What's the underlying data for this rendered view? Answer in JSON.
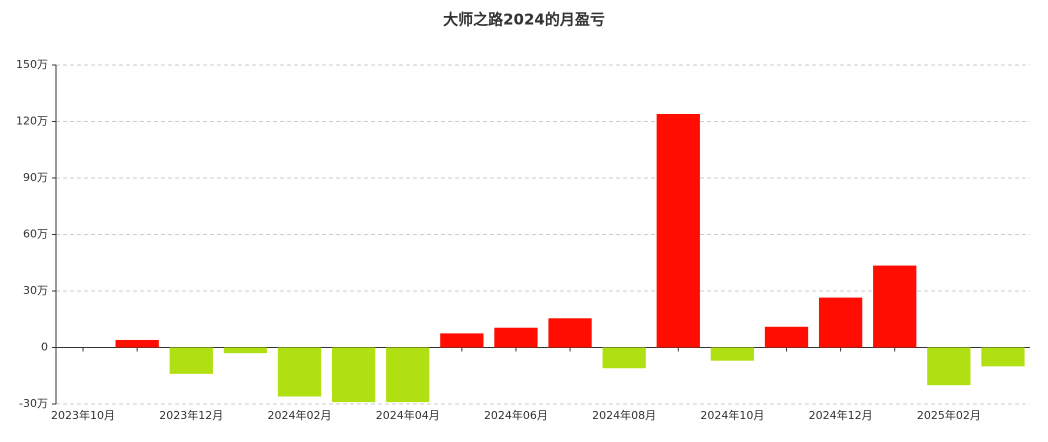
{
  "chart_data": {
    "type": "bar",
    "title": "大师之路2024的月盈亏",
    "categories": [
      "2023年10月",
      null,
      "2023年12月",
      null,
      "2024年02月",
      null,
      "2024年04月",
      null,
      "2024年06月",
      null,
      "2024年08月",
      null,
      "2024年10月",
      null,
      "2024年12月",
      null,
      "2025年02月",
      null
    ],
    "values": [
      null,
      4,
      -14,
      -3,
      -26,
      -29,
      -29,
      7.5,
      10.5,
      15.5,
      -11,
      124,
      -7,
      11,
      26.5,
      43.5,
      -20,
      -10
    ],
    "colors": {
      "positive": "#ff0d00",
      "negative": "#b0e012"
    },
    "ylim": [
      -30,
      150
    ],
    "yticks": [
      {
        "value": -30,
        "label": "-30万"
      },
      {
        "value": 0,
        "label": "0"
      },
      {
        "value": 30,
        "label": "30万"
      },
      {
        "value": 60,
        "label": "60万"
      },
      {
        "value": 90,
        "label": "90万"
      },
      {
        "value": 120,
        "label": "120万"
      },
      {
        "value": 150,
        "label": "150万"
      }
    ],
    "grid": true
  }
}
